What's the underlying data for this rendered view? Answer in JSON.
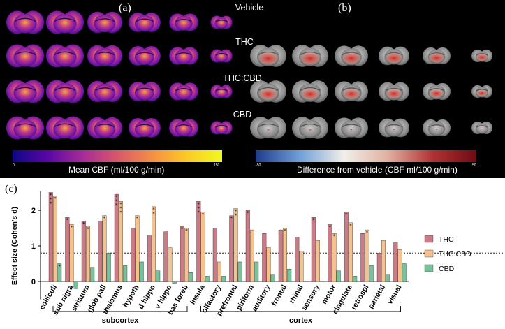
{
  "panels": {
    "a_label": "(a)",
    "b_label": "(b)",
    "c_label": "(c)"
  },
  "rows": [
    "Vehicle",
    "THC",
    "THC:CBD",
    "CBD"
  ],
  "colorbar_a": {
    "title": "Mean CBF (ml/100 g/min)",
    "min": "0",
    "max": "150",
    "colors": [
      "#0d0887",
      "#5a05a6",
      "#a52c97",
      "#d8576b",
      "#f48f44",
      "#fdca26",
      "#f0f921"
    ]
  },
  "colorbar_b": {
    "title": "Difference from vehicle (CBF ml/100 g/min)",
    "min": "-50",
    "max": "50",
    "colors": [
      "#1f3b8c",
      "#6f9fd8",
      "#f2efe9",
      "#e0b0a0",
      "#b23333",
      "#6e0b14"
    ]
  },
  "chart_data": {
    "type": "bar",
    "ylabel": "Effect size (Cohen's d)",
    "ylim": [
      -0.5,
      2.5
    ],
    "yticks": [
      "0",
      "1",
      "2"
    ],
    "threshold": 0.8,
    "legend_position": "right",
    "categories": [
      "colliculi",
      "sub nigra",
      "striatum",
      "glob pall",
      "thalamus",
      "hypoth",
      "d hippo",
      "v hippo",
      "bas foreb",
      "insula",
      "olfactory",
      "prefrontal",
      "piriform",
      "auditory",
      "frontal",
      "rhinal",
      "sensory",
      "motor",
      "cingulate",
      "retrospl",
      "parietal",
      "visual"
    ],
    "series": [
      {
        "name": "THC",
        "color": "#c97b86",
        "values": [
          2.5,
          1.8,
          1.7,
          1.7,
          2.45,
          1.5,
          1.3,
          1.4,
          1.55,
          2.25,
          1.5,
          1.85,
          2.0,
          1.35,
          1.45,
          1.25,
          1.8,
          1.6,
          1.95,
          1.35,
          0.8,
          1.1
        ]
      },
      {
        "name": "THC:CBD",
        "color": "#f4c28e",
        "values": [
          2.4,
          1.6,
          1.55,
          1.85,
          2.25,
          1.85,
          2.1,
          0.95,
          1.5,
          1.95,
          0.55,
          2.05,
          1.45,
          0.95,
          1.5,
          0.85,
          1.15,
          1.35,
          1.65,
          1.45,
          1.15,
          0.9
        ]
      },
      {
        "name": "CBD",
        "color": "#78c19a",
        "values": [
          0.5,
          -0.2,
          0.4,
          0.8,
          0.45,
          0.55,
          0.3,
          -0.05,
          0.25,
          0.15,
          0.15,
          0.55,
          0.55,
          0.2,
          0.35,
          0.0,
          0.0,
          0.3,
          0.15,
          0.45,
          0.2,
          0.5
        ]
      }
    ],
    "stars": [
      [
        3,
        1,
        1
      ],
      [
        1,
        1,
        0
      ],
      [
        1,
        1,
        0
      ],
      [
        0,
        1,
        0
      ],
      [
        3,
        3,
        0
      ],
      [
        0,
        1,
        0
      ],
      [
        0,
        2,
        0
      ],
      [
        0,
        0,
        0
      ],
      [
        1,
        1,
        0
      ],
      [
        3,
        1,
        0
      ],
      [
        0,
        0,
        0
      ],
      [
        1,
        2,
        0
      ],
      [
        1,
        0,
        0
      ],
      [
        0,
        0,
        0
      ],
      [
        0,
        1,
        0
      ],
      [
        0,
        0,
        0
      ],
      [
        1,
        0,
        0
      ],
      [
        1,
        1,
        0
      ],
      [
        1,
        1,
        0
      ],
      [
        0,
        1,
        0
      ],
      [
        0,
        0,
        0
      ],
      [
        0,
        0,
        0
      ]
    ],
    "groups": [
      {
        "label": "subcortex",
        "from": 0,
        "to": 8
      },
      {
        "label": "cortex",
        "from": 9,
        "to": 21
      }
    ]
  }
}
